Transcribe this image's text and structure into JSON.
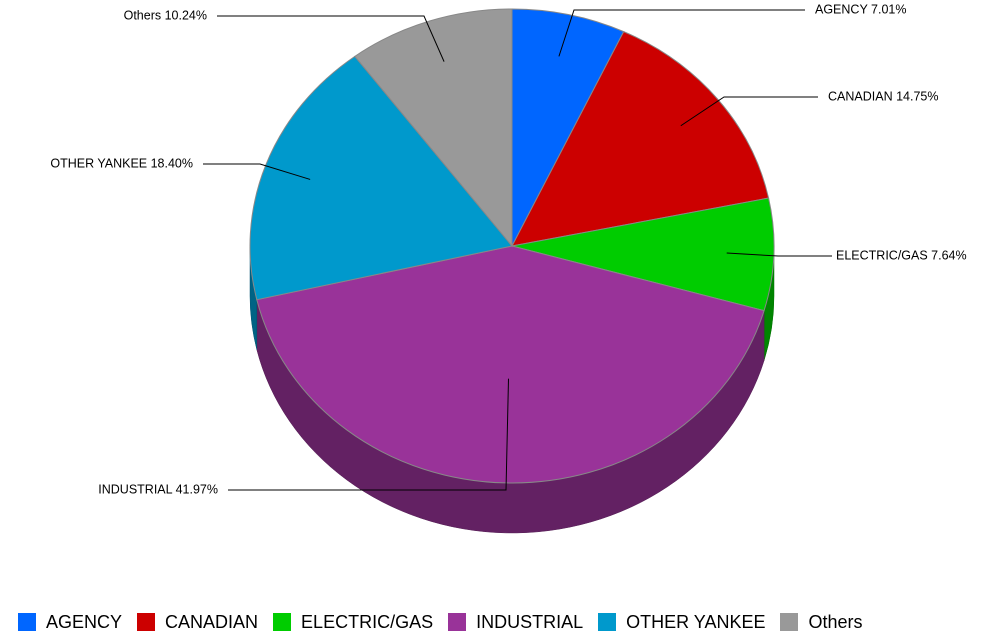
{
  "chart_data": {
    "type": "pie",
    "title": "",
    "legend_position": "bottom",
    "slices": [
      {
        "name": "AGENCY",
        "value": 7.01,
        "label": "AGENCY 7.01%",
        "color": "#0066ff"
      },
      {
        "name": "CANADIAN",
        "value": 14.75,
        "label": "CANADIAN 14.75%",
        "color": "#cc0000"
      },
      {
        "name": "ELECTRIC/GAS",
        "value": 7.64,
        "label": "ELECTRIC/GAS 7.64%",
        "color": "#00cc00"
      },
      {
        "name": "INDUSTRIAL",
        "value": 41.97,
        "label": "INDUSTRIAL 41.97%",
        "color": "#993399"
      },
      {
        "name": "OTHER YANKEE",
        "value": 18.4,
        "label": "OTHER YANKEE 18.40%",
        "color": "#0099cc"
      },
      {
        "name": "Others",
        "value": 10.24,
        "label": "Others 10.24%",
        "color": "#999999"
      }
    ]
  }
}
